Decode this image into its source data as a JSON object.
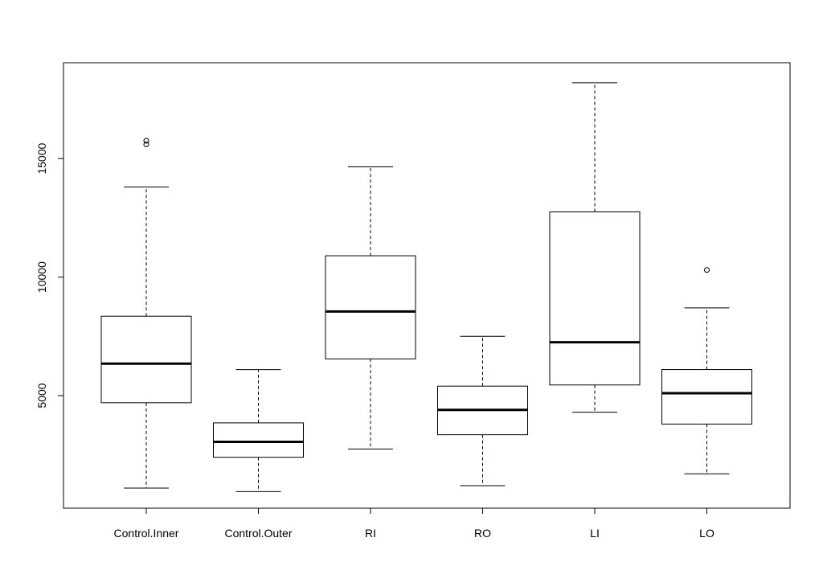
{
  "chart_data": {
    "type": "boxplot",
    "title": "",
    "xlabel": "",
    "ylabel": "",
    "ylim": [
      0,
      18800
    ],
    "y_ticks": [
      5000,
      10000,
      15000
    ],
    "y_tick_labels": [
      "5000",
      "10000",
      "15000"
    ],
    "categories": [
      "Control.Inner",
      "Control.Outer",
      "RI",
      "RO",
      "LI",
      "LO"
    ],
    "boxes": [
      {
        "name": "Control.Inner",
        "whisker_low": 1100,
        "q1": 4700,
        "median": 6350,
        "q3": 8350,
        "whisker_high": 13800,
        "outliers": [
          15600,
          15750
        ]
      },
      {
        "name": "Control.Outer",
        "whisker_low": 950,
        "q1": 2400,
        "median": 3050,
        "q3": 3850,
        "whisker_high": 6100,
        "outliers": []
      },
      {
        "name": "RI",
        "whisker_low": 2750,
        "q1": 6550,
        "median": 8550,
        "q3": 10900,
        "whisker_high": 14650,
        "outliers": []
      },
      {
        "name": "RO",
        "whisker_low": 1200,
        "q1": 3350,
        "median": 4400,
        "q3": 5400,
        "whisker_high": 7500,
        "outliers": []
      },
      {
        "name": "LI",
        "whisker_low": 4300,
        "q1": 5450,
        "median": 7250,
        "q3": 12750,
        "whisker_high": 18200,
        "outliers": []
      },
      {
        "name": "LO",
        "whisker_low": 1700,
        "q1": 3800,
        "median": 5100,
        "q3": 6100,
        "whisker_high": 8700,
        "outliers": [
          10300
        ]
      }
    ]
  }
}
